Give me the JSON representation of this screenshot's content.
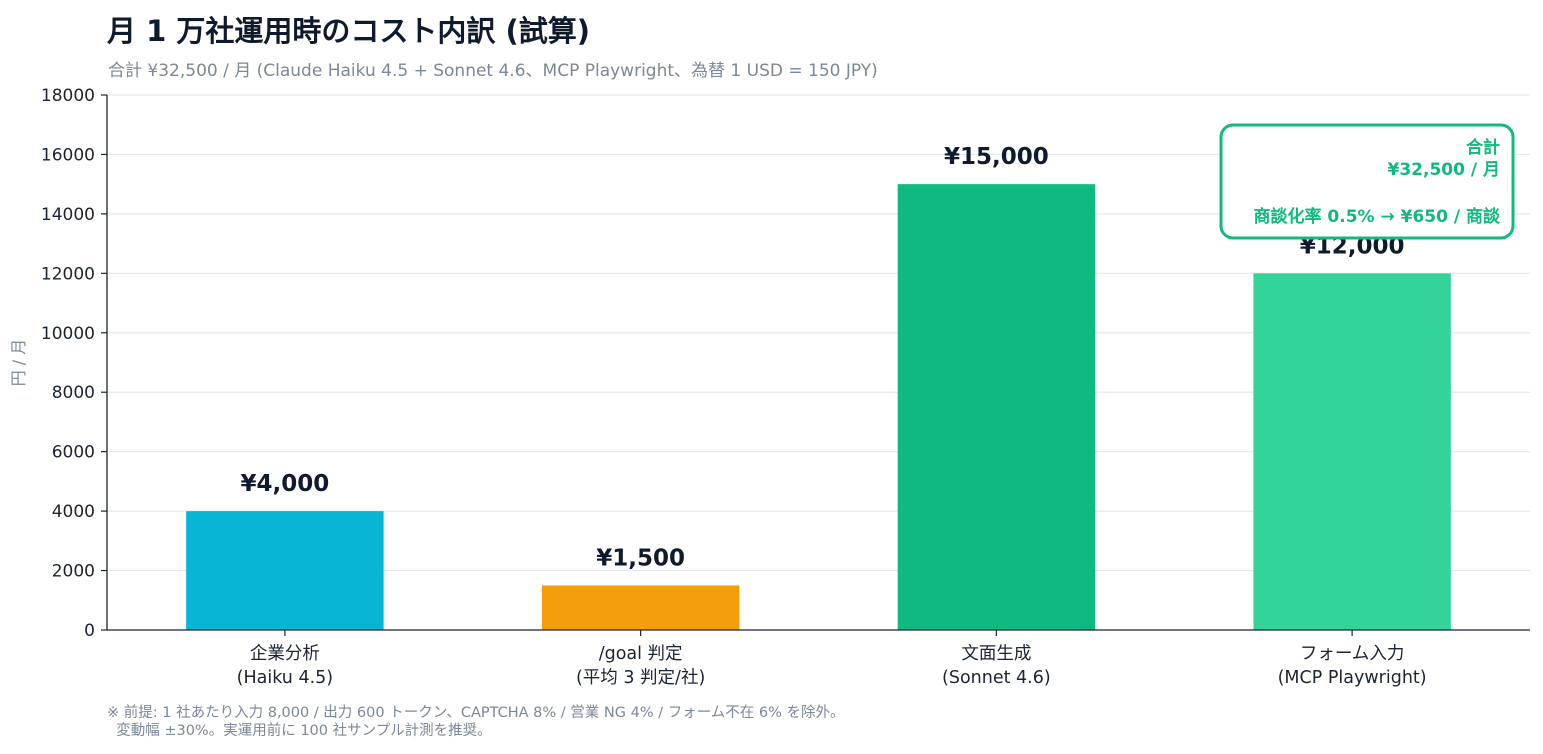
{
  "title": "月 1 万社運用時のコスト内訳 (試算)",
  "subtitle": "合計 ¥32,500 / 月 (Claude Haiku 4.5 + Sonnet 4.6、MCP Playwright、為替 1 USD = 150 JPY)",
  "footnote": {
    "line1": "※ 前提: 1 社あたり入力 8,000 / 出力 600 トークン、CAPTCHA 8% / 営業 NG 4% / フォーム不在 6% を除外。",
    "line2": "  変動幅 ±30%。実運用前に 100 社サンプル計測を推奨。"
  },
  "chart_data": {
    "type": "bar",
    "title": "月 1 万社運用時のコスト内訳 (試算)",
    "ylabel": "円 / 月",
    "xlabel": "",
    "ylim": [
      0,
      18000
    ],
    "yticks": [
      0,
      2000,
      4000,
      6000,
      8000,
      10000,
      12000,
      14000,
      16000,
      18000
    ],
    "grid": true,
    "categories": [
      [
        "企業分析",
        "(Haiku 4.5)"
      ],
      [
        "/goal 判定",
        "(平均 3 判定/社)"
      ],
      [
        "文面生成",
        "(Sonnet 4.6)"
      ],
      [
        "フォーム入力",
        "(MCP Playwright)"
      ]
    ],
    "values": [
      4000,
      1500,
      15000,
      12000
    ],
    "value_labels": [
      "¥4,000",
      "¥1,500",
      "¥15,000",
      "¥12,000"
    ],
    "colors": [
      "#06b6d4",
      "#f59e0b",
      "#10b981",
      "#34d399"
    ],
    "annotation": {
      "line1": "合計",
      "line2": "¥32,500 / 月",
      "line3": "商談化率 0.5% → ¥650 / 商談",
      "color": "#10b981",
      "placement": "top-right"
    }
  }
}
